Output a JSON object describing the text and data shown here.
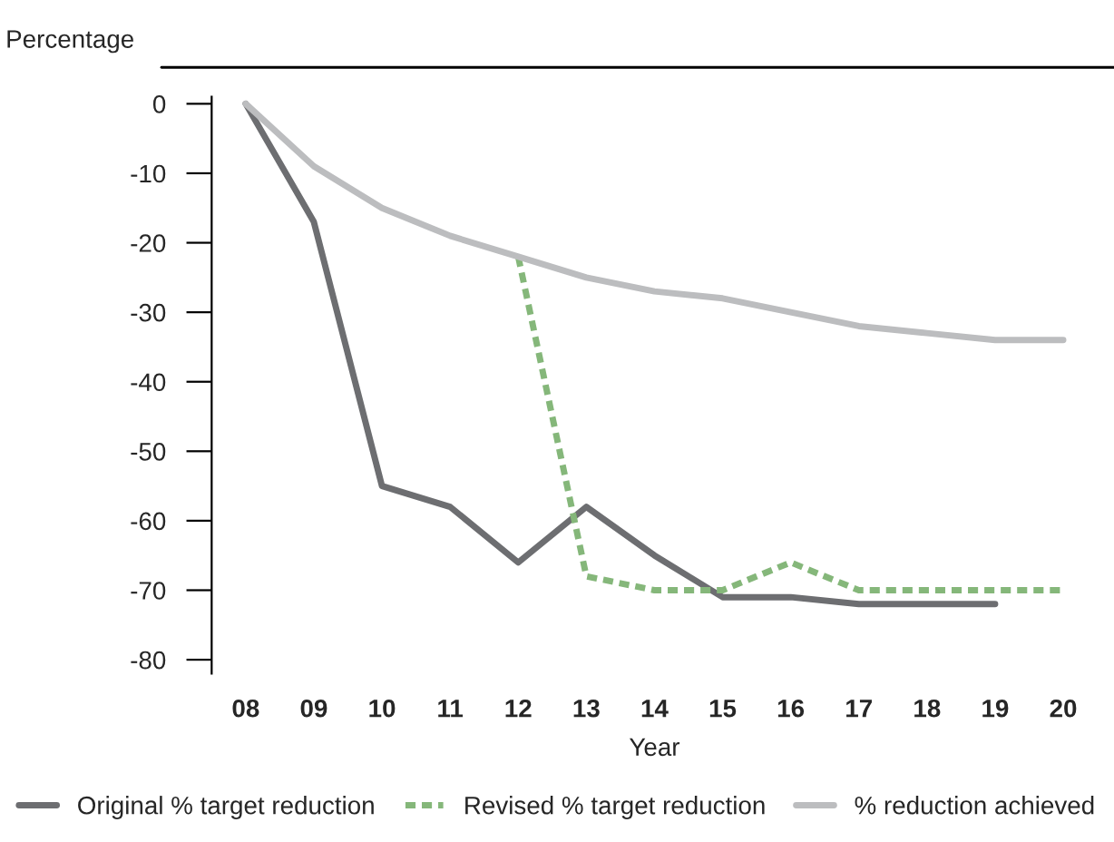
{
  "chart_data": {
    "type": "line",
    "ylabel": "Percentage",
    "xlabel": "Year",
    "categories": [
      "08",
      "09",
      "10",
      "11",
      "12",
      "13",
      "14",
      "15",
      "16",
      "17",
      "18",
      "19",
      "20"
    ],
    "series": [
      {
        "name": "Original % target reduction",
        "color": "#6d6e71",
        "line_style": "solid",
        "values": [
          0,
          -17,
          -55,
          -58,
          -66,
          -58,
          -65,
          -71,
          -71,
          -72,
          -72,
          -72,
          null
        ]
      },
      {
        "name": "Revised % target reduction",
        "color": "#85b77a",
        "line_style": "dashed",
        "values": [
          null,
          null,
          null,
          null,
          -22,
          -68,
          -70,
          -70,
          -66,
          -70,
          -70,
          -70,
          -70
        ]
      },
      {
        "name": "% reduction achieved",
        "color": "#bcbdbf",
        "line_style": "solid",
        "values": [
          0,
          -9,
          -15,
          -19,
          -22,
          -25,
          -27,
          -28,
          -30,
          -32,
          -33,
          -34,
          -34
        ]
      }
    ],
    "ylim": [
      -82,
      1
    ],
    "yticks": [
      0,
      -10,
      -20,
      -30,
      -40,
      -50,
      -60,
      -70,
      -80
    ],
    "grid": false,
    "legend": "bottom",
    "marker": "none"
  }
}
